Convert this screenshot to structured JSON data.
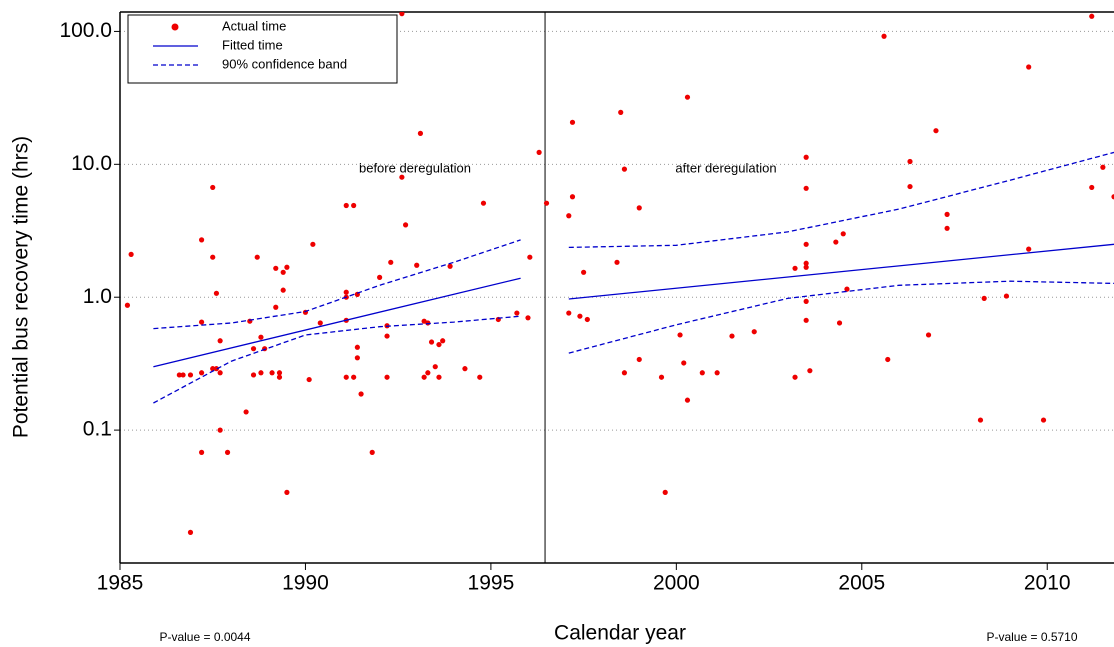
{
  "chart_data": {
    "type": "scatter",
    "y_label": "Potential bus recovery time (hrs)",
    "x_label": "Calendar year",
    "annotations": [
      "before deregulation",
      "after deregulation"
    ],
    "p_values": [
      "P-value = 0.0044",
      "P-value = 0.5710"
    ],
    "divider_x": 1996.46,
    "log_y": true,
    "grid": true,
    "legend": "top-left",
    "xlim": [
      1985,
      2011.8
    ],
    "ylim": [
      0.01,
      140
    ],
    "xticks": [
      1985,
      1990,
      1995,
      2000,
      2005,
      2010
    ],
    "yticks": [
      {
        "value": 100,
        "label": "100.0"
      },
      {
        "value": 10,
        "label": "10.0"
      },
      {
        "value": 1,
        "label": "1.0"
      },
      0.1
    ],
    "series": [
      {
        "name": "Actual time",
        "kind": "points",
        "color": "#ee0000",
        "x": [
          1985.2,
          1985.3,
          1986.6,
          1986.7,
          1986.9,
          1986.9,
          1987.2,
          1987.2,
          1987.2,
          1987.2,
          1987.5,
          1987.5,
          1987.5,
          1987.6,
          1987.6,
          1987.7,
          1987.7,
          1987.7,
          1987.9,
          1988.4,
          1988.5,
          1988.6,
          1988.6,
          1988.7,
          1988.8,
          1988.8,
          1988.9,
          1989.1,
          1989.2,
          1989.2,
          1989.3,
          1989.3,
          1989.4,
          1989.4,
          1989.5,
          1989.5,
          1990.0,
          1990.1,
          1990.2,
          1990.4,
          1991.1,
          1991.1,
          1991.1,
          1991.1,
          1991.1,
          1991.3,
          1991.3,
          1991.4,
          1991.4,
          1991.4,
          1991.5,
          1991.8,
          1992.0,
          1992.2,
          1992.2,
          1992.2,
          1992.3,
          1992.6,
          1992.6,
          1992.7,
          1993.0,
          1993.1,
          1993.2,
          1993.2,
          1993.3,
          1993.3,
          1993.4,
          1993.5,
          1993.6,
          1993.7,
          1993.6,
          1993.9,
          1994.3,
          1994.7,
          1994.8,
          1995.2,
          1995.7,
          1996.0,
          1996.05,
          1996.3,
          1996.5,
          1997.2,
          1997.2,
          1997.1,
          1997.1,
          1997.4,
          1997.5,
          1997.6,
          1998.4,
          1998.5,
          1998.6,
          1998.6,
          1999.0,
          1999.0,
          1999.6,
          1999.7,
          2000.1,
          2000.2,
          2000.3,
          2000.3,
          2000.7,
          2001.1,
          2001.5,
          2002.1,
          2003.2,
          2003.2,
          2003.5,
          2003.5,
          2003.5,
          2003.5,
          2003.5,
          2003.5,
          2003.5,
          2003.6,
          2004.3,
          2004.4,
          2004.5,
          2004.6,
          2005.6,
          2005.7,
          2006.3,
          2006.3,
          2006.8,
          2007.0,
          2007.3,
          2007.3,
          2008.2,
          2008.3,
          2008.9,
          2009.5,
          2009.5,
          2009.9,
          2011.2,
          2011.2,
          2011.5,
          2011.8
        ],
        "values": [
          0.87,
          2.1,
          0.26,
          0.26,
          0.26,
          0.017,
          2.7,
          0.65,
          0.27,
          0.068,
          6.7,
          2.0,
          0.29,
          1.07,
          0.29,
          0.1,
          0.47,
          0.27,
          0.068,
          0.137,
          0.66,
          0.41,
          0.26,
          2.0,
          0.5,
          0.27,
          0.41,
          0.27,
          0.84,
          1.65,
          0.25,
          0.27,
          1.13,
          1.54,
          1.68,
          0.034,
          0.77,
          0.24,
          2.5,
          0.64,
          4.9,
          0.67,
          1.09,
          1.0,
          0.25,
          4.9,
          0.25,
          1.05,
          0.42,
          0.35,
          0.187,
          0.068,
          1.41,
          0.51,
          0.61,
          0.25,
          1.83,
          136,
          8.0,
          3.5,
          1.74,
          17.1,
          0.66,
          0.25,
          0.27,
          0.64,
          0.46,
          0.3,
          0.44,
          0.47,
          0.25,
          1.71,
          0.29,
          0.25,
          5.1,
          0.68,
          0.76,
          0.7,
          2.0,
          12.3,
          5.1,
          20.7,
          5.7,
          4.1,
          0.76,
          0.72,
          1.54,
          0.68,
          1.83,
          24.6,
          9.2,
          0.27,
          0.34,
          4.7,
          0.25,
          0.034,
          0.52,
          0.32,
          0.168,
          32,
          0.27,
          0.27,
          0.51,
          0.55,
          1.65,
          0.25,
          0.67,
          11.3,
          6.6,
          2.5,
          1.8,
          1.68,
          0.93,
          0.28,
          2.6,
          0.64,
          3.0,
          1.15,
          92,
          0.34,
          10.5,
          6.8,
          0.52,
          17.9,
          4.2,
          3.3,
          0.119,
          0.98,
          1.02,
          54,
          2.3,
          0.119,
          130,
          6.7,
          9.5,
          5.7
        ]
      },
      {
        "name": "Fitted time",
        "kind": "line",
        "color": "#0000cc",
        "x": [
          1985.9,
          1995.8,
          null,
          1997.1,
          2011.8
        ],
        "values": [
          0.3,
          1.39,
          null,
          0.97,
          2.5
        ]
      },
      {
        "name": "90% confidence band",
        "kind": "band",
        "color": "#0000cc",
        "x": [
          1985.9,
          1988,
          1990,
          1992,
          1994,
          1995.8,
          null,
          1997.1,
          2000,
          2003,
          2006,
          2009,
          2011.8
        ],
        "upper": [
          0.58,
          0.64,
          0.78,
          1.23,
          1.83,
          2.7,
          null,
          2.37,
          2.46,
          3.1,
          4.6,
          7.6,
          12.3
        ],
        "lower": [
          0.16,
          0.33,
          0.52,
          0.6,
          0.65,
          0.72,
          null,
          0.38,
          0.62,
          0.98,
          1.23,
          1.32,
          1.27
        ]
      }
    ]
  }
}
